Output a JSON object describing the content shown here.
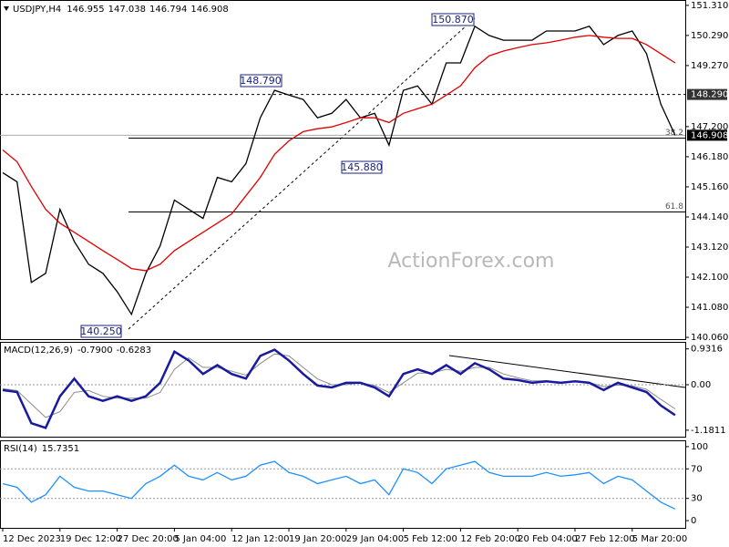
{
  "chart_data": [
    {
      "type": "line",
      "title": "USDJPY,H4",
      "watermark": "ActionForex.com",
      "quote": [
        146.955,
        147.038,
        146.794,
        146.908
      ],
      "ylim": [
        140.0,
        151.46
      ],
      "yticks": [
        {
          "value": 151.31,
          "label": "151.310"
        },
        {
          "value": 150.29,
          "label": "150.290"
        },
        {
          "value": 149.27,
          "label": "149.270"
        },
        {
          "value": 147.2,
          "label": "147.200"
        },
        {
          "value": 146.18,
          "label": "146.180"
        },
        {
          "value": 145.16,
          "label": "145.160"
        },
        {
          "value": 144.14,
          "label": "144.140"
        },
        {
          "value": 143.12,
          "label": "143.120"
        },
        {
          "value": 142.1,
          "label": "142.100"
        },
        {
          "value": 141.08,
          "label": "141.080"
        },
        {
          "value": 140.06,
          "label": "140.060"
        }
      ],
      "level": {
        "value": 148.29,
        "label": "148.290"
      },
      "last_price": 146.908,
      "fibs": [
        {
          "level": 38.2,
          "price": 146.81
        },
        {
          "level": 61.8,
          "price": 144.31
        }
      ],
      "pivots": [
        {
          "value": 150.87,
          "label": "150.870"
        },
        {
          "value": 148.79,
          "label": "148.790"
        },
        {
          "value": 145.88,
          "label": "145.880"
        },
        {
          "value": 140.25,
          "label": "140.250"
        }
      ],
      "series": [
        {
          "color": "#000000",
          "values": [
            145.64,
            145.33,
            141.92,
            142.23,
            144.4,
            143.31,
            142.54,
            142.23,
            141.61,
            140.84,
            142.23,
            143.16,
            144.71,
            144.4,
            144.09,
            145.48,
            145.33,
            145.95,
            147.5,
            148.43,
            148.27,
            148.12,
            147.5,
            147.65,
            148.12,
            147.5,
            147.65,
            146.57,
            148.43,
            148.58,
            147.96,
            149.36,
            149.36,
            150.6,
            150.29,
            150.13,
            150.13,
            150.13,
            150.44,
            150.44,
            150.44,
            150.6,
            149.98,
            150.29,
            150.44,
            149.67,
            147.96,
            146.908
          ]
        },
        {
          "color": "#e00000",
          "values": [
            146.41,
            146.01,
            145.17,
            144.4,
            143.93,
            143.62,
            143.31,
            143.0,
            142.7,
            142.39,
            142.32,
            142.54,
            143.0,
            143.31,
            143.62,
            143.93,
            144.24,
            144.86,
            145.48,
            146.26,
            146.72,
            147.03,
            147.13,
            147.19,
            147.34,
            147.5,
            147.5,
            147.34,
            147.65,
            147.81,
            147.96,
            148.27,
            148.58,
            149.2,
            149.6,
            149.76,
            149.88,
            149.98,
            150.04,
            150.13,
            150.23,
            150.29,
            150.23,
            150.19,
            150.19,
            149.98,
            149.67,
            149.36
          ]
        }
      ]
    },
    {
      "type": "line",
      "title": "MACD(12,26,9)",
      "readout": [
        {
          "value": -0.79,
          "label": "-0.7900"
        },
        -0.6283
      ],
      "ylim": [
        -1.35,
        1.09
      ],
      "yticks": [
        0.9316,
        {
          "value": 0,
          "label": "0.00"
        },
        -1.1811
      ],
      "zero_line": true,
      "series": [
        {
          "color": "#8c8c8c",
          "values": [
            -0.1,
            -0.15,
            -0.5,
            -0.85,
            -0.7,
            -0.2,
            -0.15,
            -0.3,
            -0.35,
            -0.35,
            -0.35,
            -0.2,
            0.4,
            0.7,
            0.45,
            0.45,
            0.35,
            0.25,
            0.55,
            0.8,
            0.75,
            0.45,
            0.15,
            0.0,
            0.0,
            0.05,
            -0.02,
            -0.2,
            0.05,
            0.3,
            0.3,
            0.4,
            0.35,
            0.45,
            0.45,
            0.28,
            0.18,
            0.1,
            0.1,
            0.07,
            0.08,
            0.06,
            -0.05,
            -0.01,
            -0.03,
            -0.12,
            -0.38,
            -0.6283
          ]
        },
        {
          "color": "#1a1aa0",
          "values": [
            -0.14,
            -0.19,
            -1.0,
            -1.12,
            -0.3,
            0.16,
            -0.3,
            -0.42,
            -0.3,
            -0.42,
            -0.3,
            0.05,
            0.86,
            0.63,
            0.28,
            0.51,
            0.28,
            0.16,
            0.75,
            0.91,
            0.63,
            0.28,
            -0.02,
            -0.07,
            0.05,
            0.05,
            -0.07,
            -0.3,
            0.28,
            0.4,
            0.28,
            0.51,
            0.28,
            0.56,
            0.4,
            0.16,
            0.12,
            0.05,
            0.09,
            0.05,
            0.09,
            0.05,
            -0.14,
            0.05,
            -0.07,
            -0.19,
            -0.54,
            -0.79
          ]
        }
      ]
    },
    {
      "type": "line",
      "title": "RSI(14)",
      "readout": [
        15.7351
      ],
      "ylim": [
        -9.8,
        107.3
      ],
      "yticks": [
        100,
        70,
        30,
        0
      ],
      "levels": [
        70,
        30
      ],
      "categories": [
        "12 Dec 2023",
        null,
        null,
        null,
        "19 Dec 12:00",
        null,
        null,
        null,
        "27 Dec 20:00",
        null,
        null,
        null,
        "5 Jan 04:00",
        null,
        null,
        null,
        "12 Jan 12:00",
        null,
        null,
        null,
        "19 Jan 20:00",
        null,
        null,
        null,
        "29 Jan 04:00",
        null,
        null,
        null,
        "5 Feb 12:00",
        null,
        null,
        null,
        "12 Feb 20:00",
        null,
        null,
        null,
        "20 Feb 04:00",
        null,
        null,
        null,
        "27 Feb 12:00",
        null,
        null,
        null,
        "5 Mar 20:00",
        null,
        null,
        null
      ],
      "series": [
        {
          "color": "#1e90ff",
          "values": [
            50,
            45,
            25,
            35,
            60,
            45,
            40,
            40,
            35,
            30,
            50,
            60,
            75,
            60,
            55,
            65,
            55,
            60,
            75,
            80,
            65,
            60,
            50,
            55,
            60,
            50,
            55,
            35,
            70,
            65,
            50,
            70,
            75,
            80,
            65,
            60,
            60,
            60,
            65,
            60,
            62,
            65,
            50,
            60,
            55,
            40,
            25,
            15.7351
          ]
        }
      ]
    }
  ]
}
